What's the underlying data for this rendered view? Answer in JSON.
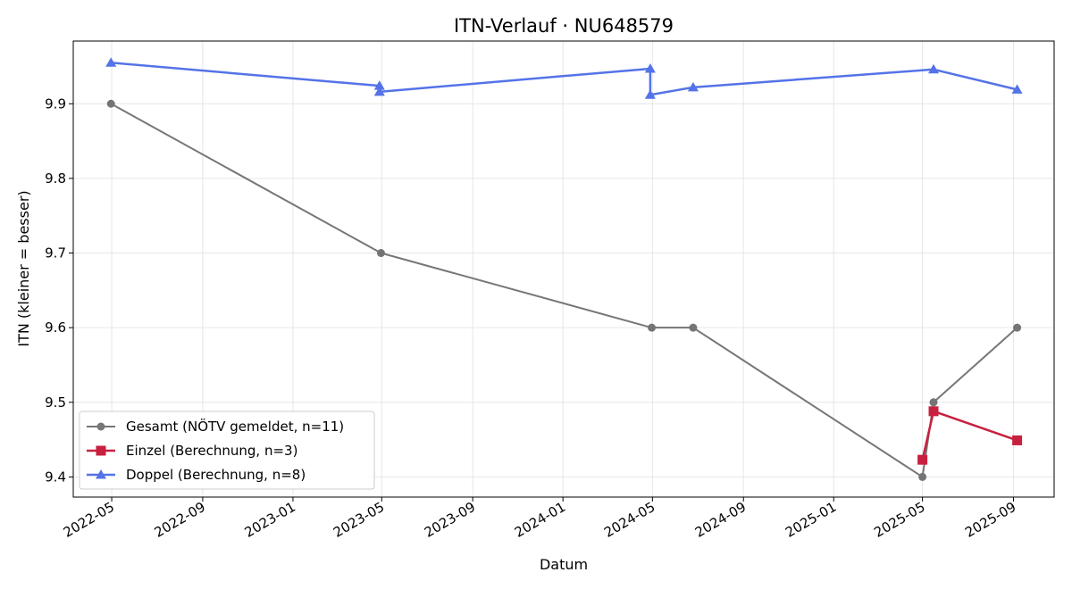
{
  "chart_data": {
    "type": "line",
    "title": "ITN-Verlauf · NU648579",
    "xlabel": "Datum",
    "ylabel": "ITN  (kleiner = besser)",
    "x_axis_type": "date",
    "xlim": [
      "2022-03-10",
      "2025-10-26"
    ],
    "ylim": [
      9.373,
      9.984
    ],
    "x_ticks": [
      "2022-05-01",
      "2022-09-01",
      "2023-01-01",
      "2023-05-01",
      "2023-09-01",
      "2024-01-01",
      "2024-05-01",
      "2024-09-01",
      "2025-01-01",
      "2025-05-01",
      "2025-09-01"
    ],
    "x_tick_labels": [
      "2022-05",
      "2022-09",
      "2023-01",
      "2023-05",
      "2023-09",
      "2024-01",
      "2024-05",
      "2024-09",
      "2025-01",
      "2025-05",
      "2025-09"
    ],
    "y_ticks": [
      9.4,
      9.5,
      9.6,
      9.7,
      9.8,
      9.9
    ],
    "y_tick_labels": [
      "9.4",
      "9.5",
      "9.6",
      "9.7",
      "9.8",
      "9.9"
    ],
    "grid": true,
    "legend_position": "lower-left",
    "series": [
      {
        "name": "Gesamt (NÖTV gemeldet, n=11)",
        "color": "#555555",
        "marker": "circle",
        "x": [
          "2022-04-30",
          "2023-04-30",
          "2024-04-30",
          "2024-06-25",
          "2025-05-01",
          "2025-05-16",
          "2025-09-06"
        ],
        "y": [
          9.9,
          9.7,
          9.6,
          9.6,
          9.4,
          9.5,
          9.6
        ]
      },
      {
        "name": "Einzel (Berechnung, n=3)",
        "color": "#c8203f",
        "marker": "square",
        "x": [
          "2025-05-01",
          "2025-05-16",
          "2025-09-06"
        ],
        "y": [
          9.423,
          9.488,
          9.449
        ]
      },
      {
        "name": "Doppel (Berechnung, n=8)",
        "color": "#5473e8",
        "marker": "triangle",
        "x": [
          "2022-04-30",
          "2023-04-28",
          "2023-04-28",
          "2024-04-28",
          "2024-04-28",
          "2024-06-25",
          "2025-05-16",
          "2025-09-06"
        ],
        "y": [
          9.955,
          9.924,
          9.916,
          9.947,
          9.912,
          9.922,
          9.946,
          9.919
        ]
      }
    ]
  }
}
